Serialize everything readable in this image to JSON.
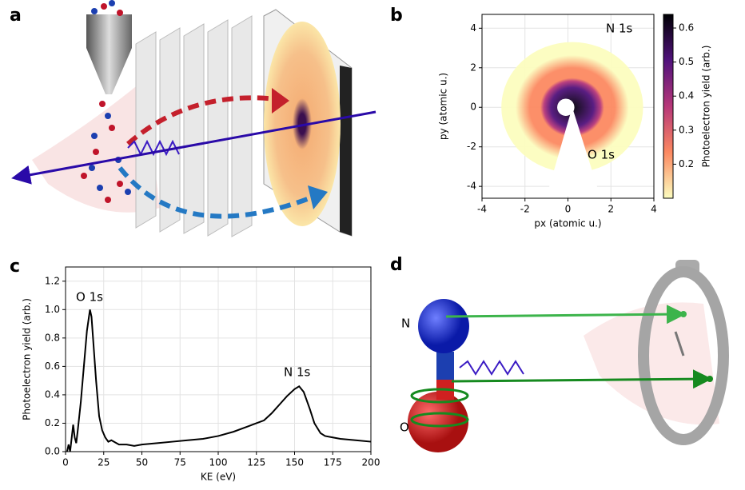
{
  "panels": {
    "a": "a",
    "d": "d"
  },
  "diagram": {
    "atom_n": "N",
    "atom_o": "O"
  },
  "chart_data": [
    {
      "type": "heatmap",
      "panel_label": "b",
      "x_label": "px (atomic u.)",
      "y_label": "py (atomic u.)",
      "xlim": [
        -4,
        4
      ],
      "ylim": [
        -4.6,
        4.7
      ],
      "xticks": [
        -4,
        -2,
        0,
        2,
        4
      ],
      "yticks": [
        -4,
        -2,
        0,
        2,
        4
      ],
      "grid": true,
      "colorbar_label": "Photoelectron yield (arb.)",
      "clim": [
        0.1,
        0.64
      ],
      "cticks": [
        0.2,
        0.3,
        0.4,
        0.5,
        0.6
      ],
      "colormap": [
        "#fcfdbf",
        "#fc8961",
        "#b73779",
        "#51127c",
        "#000004"
      ],
      "annotations": [
        "N 1s",
        "O 1s"
      ]
    },
    {
      "type": "line",
      "panel_label": "c",
      "x_label": "KE (eV)",
      "y_label": "Photoelectron yield (arb.)",
      "xlim": [
        0,
        200
      ],
      "ylim": [
        0,
        1.3
      ],
      "xticks": [
        0,
        25,
        50,
        75,
        100,
        125,
        150,
        175,
        200
      ],
      "yticks": [
        {
          "value": 0,
          "label": "0.0"
        },
        0.2,
        0.4,
        0.6,
        0.8,
        {
          "value": 1,
          "label": "1.0"
        },
        1.2
      ],
      "grid": true,
      "color": "#000000",
      "x": [
        1,
        2,
        3,
        5,
        6,
        7,
        8,
        10,
        12,
        14,
        16,
        17,
        18,
        20,
        22,
        24,
        26,
        28,
        30,
        35,
        40,
        45,
        50,
        60,
        70,
        80,
        90,
        100,
        110,
        120,
        125,
        130,
        135,
        140,
        145,
        150,
        153,
        156,
        160,
        163,
        167,
        170,
        175,
        180,
        190,
        200
      ],
      "values": [
        0.0,
        0.05,
        0.0,
        0.19,
        0.1,
        0.06,
        0.15,
        0.35,
        0.6,
        0.85,
        1.0,
        0.95,
        0.8,
        0.5,
        0.25,
        0.15,
        0.1,
        0.07,
        0.08,
        0.05,
        0.05,
        0.04,
        0.05,
        0.06,
        0.07,
        0.08,
        0.09,
        0.11,
        0.14,
        0.18,
        0.2,
        0.22,
        0.27,
        0.33,
        0.39,
        0.44,
        0.46,
        0.42,
        0.3,
        0.2,
        0.13,
        0.11,
        0.1,
        0.09,
        0.08,
        0.07
      ],
      "annotations": [
        "O 1s",
        "N 1s"
      ]
    }
  ]
}
